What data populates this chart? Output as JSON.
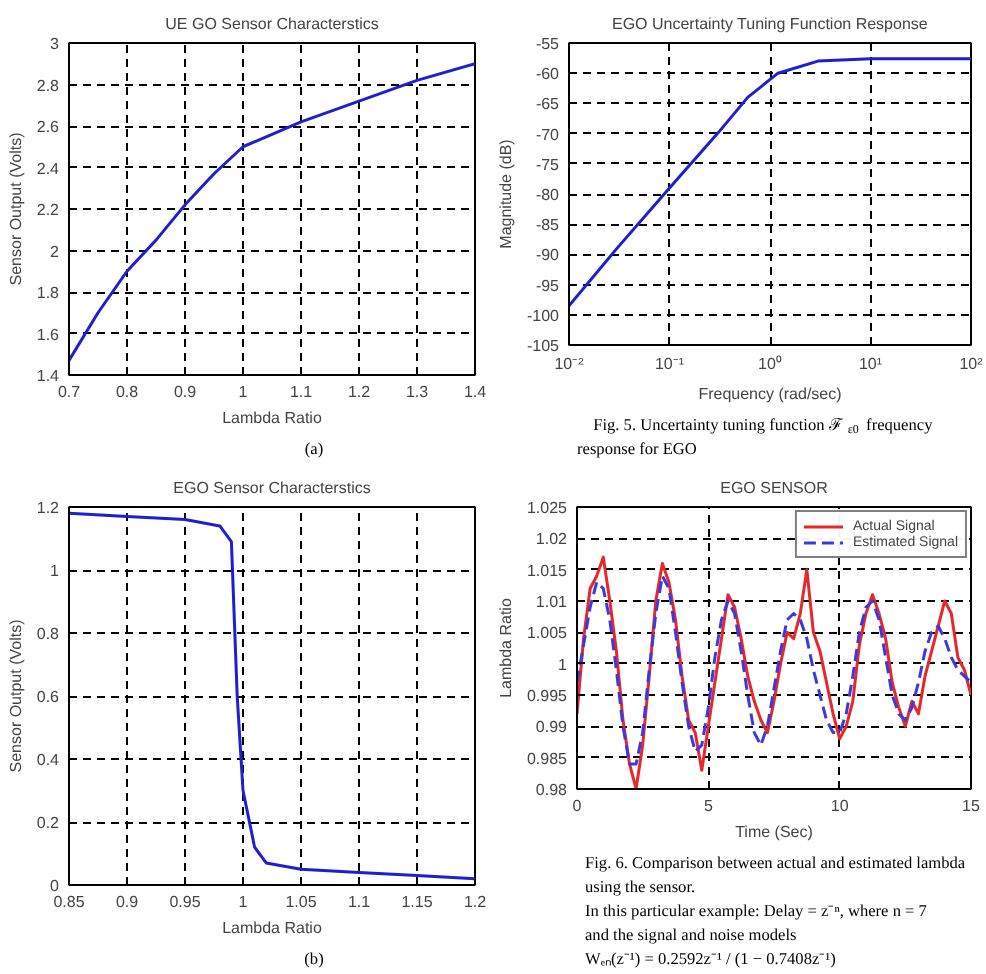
{
  "chart_data": [
    {
      "type": "line",
      "title": "UE GO Sensor Characterstics",
      "xlabel": "Lambda Ratio",
      "ylabel": "Sensor Output (Volts)",
      "x": [
        0.7,
        0.75,
        0.8,
        0.85,
        0.9,
        0.95,
        1.0,
        1.1,
        1.2,
        1.3,
        1.4
      ],
      "series": [
        {
          "color": "#1f1fd0",
          "values": [
            1.47,
            1.7,
            1.9,
            2.05,
            2.22,
            2.37,
            2.5,
            2.62,
            2.72,
            2.82,
            2.9
          ]
        }
      ],
      "xlim": [
        0.7,
        1.4
      ],
      "ylim": [
        1.4,
        3
      ],
      "xticks": [
        0.7,
        0.8,
        0.9,
        1,
        1.1,
        1.2,
        1.3,
        1.4
      ],
      "yticks": [
        1.4,
        1.6,
        1.8,
        2,
        2.2,
        2.4,
        2.6,
        2.8,
        3
      ],
      "grid": true,
      "annotations": [
        "(a)"
      ]
    },
    {
      "type": "line",
      "title": "EGO Uncertainty Tuning Function Response",
      "xlabel": "Frequency (rad/sec)",
      "ylabel": "Magnitude (dB)",
      "x": [
        0.01,
        0.03,
        0.1,
        0.3,
        0.6,
        1.2,
        3,
        10,
        100
      ],
      "series": [
        {
          "color": "#1f1fd0",
          "values": [
            -98.5,
            -89,
            -79,
            -70,
            -64,
            -60,
            -58,
            -57.6,
            -57.6
          ]
        }
      ],
      "log": "x",
      "xlim": [
        0.01,
        100
      ],
      "ylim": [
        -105,
        -55
      ],
      "xticks": [
        {
          "value": 0.01,
          "label": "10⁻²"
        },
        {
          "value": 0.1,
          "label": "10⁻¹"
        },
        {
          "value": 1,
          "label": "10⁰"
        },
        {
          "value": 10,
          "label": "10¹"
        },
        {
          "value": 100,
          "label": "10²"
        }
      ],
      "yticks": [
        -105,
        -100,
        -95,
        -90,
        -85,
        -80,
        -75,
        -70,
        -65,
        -60,
        -55
      ],
      "grid": true,
      "annotations": [
        "Fig. 5.  Uncertainty tuning function ℱ$_{ε0}$ frequency",
        "response for EGO"
      ]
    },
    {
      "type": "line",
      "title": "EGO Sensor Characterstics",
      "xlabel": "Lambda Ratio",
      "ylabel": "Sensor Output (Volts)",
      "x": [
        0.85,
        0.9,
        0.95,
        0.98,
        0.99,
        0.995,
        1.0,
        1.01,
        1.02,
        1.05,
        1.1,
        1.15,
        1.2
      ],
      "series": [
        {
          "color": "#1f1fd0",
          "values": [
            1.18,
            1.17,
            1.16,
            1.14,
            1.09,
            0.6,
            0.3,
            0.12,
            0.07,
            0.05,
            0.04,
            0.03,
            0.02
          ]
        }
      ],
      "xlim": [
        0.85,
        1.2
      ],
      "ylim": [
        0,
        1.2
      ],
      "xticks": [
        0.85,
        0.9,
        0.95,
        1,
        1.05,
        1.1,
        1.15,
        1.2
      ],
      "yticks": [
        0,
        0.2,
        0.4,
        0.6,
        0.8,
        1,
        1.2
      ],
      "grid": true,
      "annotations": [
        "(b)"
      ]
    },
    {
      "type": "line",
      "title": "EGO SENSOR",
      "xlabel": "Time (Sec)",
      "ylabel": "Lambda Ratio",
      "x": [
        0,
        0.25,
        0.5,
        0.75,
        1,
        1.25,
        1.5,
        1.75,
        2,
        2.25,
        2.5,
        2.75,
        3,
        3.25,
        3.5,
        3.75,
        4,
        4.25,
        4.5,
        4.75,
        5,
        5.25,
        5.5,
        5.75,
        6,
        6.25,
        6.5,
        6.75,
        7,
        7.25,
        7.5,
        7.75,
        8,
        8.25,
        8.5,
        8.75,
        9,
        9.25,
        9.5,
        9.75,
        10,
        10.25,
        10.5,
        10.75,
        11,
        11.25,
        11.5,
        11.75,
        12,
        12.25,
        12.5,
        12.75,
        13,
        13.25,
        13.5,
        13.75,
        14,
        14.25,
        14.5,
        14.75,
        15
      ],
      "series": [
        {
          "name": "Actual Signal",
          "color": "#e8272a",
          "line_style": "solid",
          "values": [
            0.992,
            1.004,
            1.012,
            1.014,
            1.017,
            1.01,
            1.002,
            0.991,
            0.984,
            0.98,
            0.987,
            0.998,
            1.01,
            1.016,
            1.013,
            1.007,
            0.998,
            0.991,
            0.989,
            0.983,
            0.99,
            0.997,
            1.004,
            1.011,
            1.009,
            1.004,
            0.998,
            0.994,
            0.991,
            0.989,
            0.994,
            1.0,
            1.005,
            1.004,
            1.008,
            1.015,
            1.005,
            1.002,
            0.997,
            0.992,
            0.988,
            0.99,
            0.994,
            1.003,
            1.008,
            1.011,
            1.008,
            1.004,
            0.997,
            0.993,
            0.99,
            0.994,
            0.992,
            0.998,
            1.002,
            1.006,
            1.01,
            1.008,
            1.001,
            0.999,
            0.995
          ]
        },
        {
          "name": "Estimated Signal",
          "color": "#3a3ae0",
          "line_style": "dashed",
          "values": [
            0.997,
            1.003,
            1.009,
            1.013,
            1.012,
            1.007,
            0.999,
            0.99,
            0.984,
            0.984,
            0.989,
            0.999,
            1.008,
            1.014,
            1.012,
            1.005,
            0.997,
            0.99,
            0.986,
            0.987,
            0.993,
            1.001,
            1.007,
            1.01,
            1.008,
            1.002,
            0.995,
            0.989,
            0.987,
            0.99,
            0.996,
            1.002,
            1.007,
            1.008,
            1.007,
            1.004,
            0.999,
            0.995,
            0.991,
            0.989,
            0.989,
            0.992,
            0.998,
            1.005,
            1.009,
            1.01,
            1.007,
            1.001,
            0.995,
            0.992,
            0.991,
            0.993,
            0.997,
            1.002,
            1.005,
            1.006,
            1.004,
            1.001,
            0.999,
            0.998,
            0.997
          ]
        }
      ],
      "xlim": [
        0,
        15
      ],
      "ylim": [
        0.98,
        1.025
      ],
      "xticks": [
        0,
        5,
        10,
        15
      ],
      "yticks": [
        0.98,
        0.985,
        0.99,
        0.995,
        1,
        1.005,
        1.01,
        1.015,
        1.02,
        1.025
      ],
      "grid": true,
      "legend": "top right",
      "annotations": [
        "Fig. 6.  Comparison between actual and estimated lambda",
        "using the sensor.",
        "In this particular example: Delay = z⁻ⁿ, where n = 7",
        "and the signal and noise models",
        "Wₑₙ(z⁻¹) = 0.2592z⁻¹ / (1 − 0.7408z⁻¹)"
      ]
    }
  ]
}
